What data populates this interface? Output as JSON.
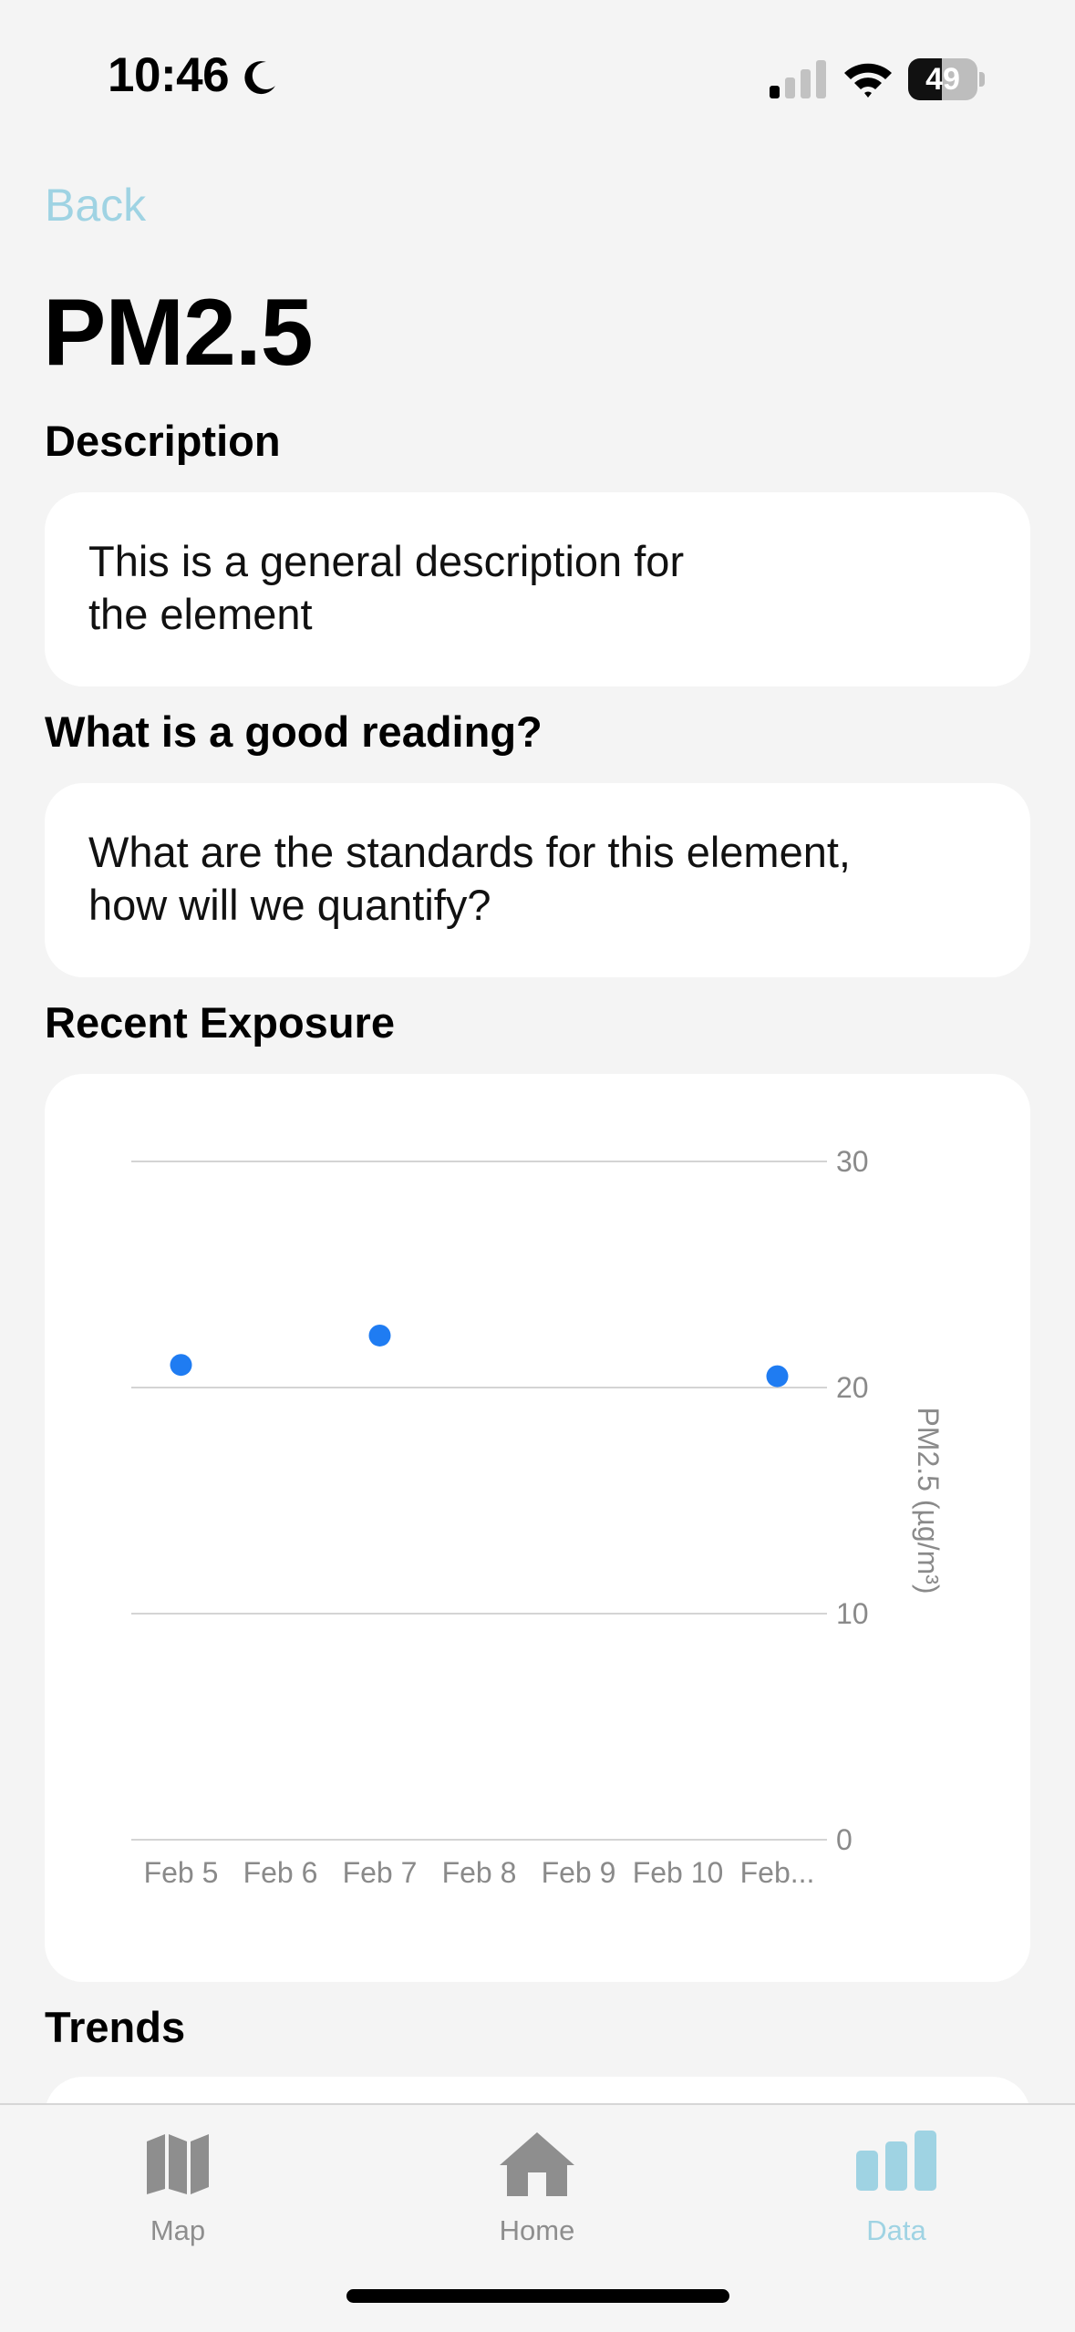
{
  "status": {
    "time": "10:46",
    "battery": "49",
    "battery_level": 0.49
  },
  "nav": {
    "back_label": "Back"
  },
  "page": {
    "title": "PM2.5"
  },
  "description": {
    "heading": "Description",
    "text": "This is a general description for\nthe element"
  },
  "good_reading": {
    "heading": "What is a good reading?",
    "text": "What are the standards for this element,\nhow will we quantify?"
  },
  "exposure": {
    "heading": "Recent Exposure"
  },
  "trends": {
    "heading": "Trends"
  },
  "chart_data": {
    "type": "scatter",
    "categories": [
      "Feb 5",
      "Feb 6",
      "Feb 7",
      "Feb 8",
      "Feb 9",
      "Feb 10",
      "Feb..."
    ],
    "points": [
      {
        "x": "Feb 5",
        "y": 21.0
      },
      {
        "x": "Feb 7",
        "y": 22.3
      },
      {
        "x": "Feb...",
        "y": 20.5
      }
    ],
    "yticks": [
      0,
      10,
      20,
      30
    ],
    "ylim": [
      0,
      30
    ],
    "ylabel": "PM2.5 (µg/m³)",
    "xlabel": "",
    "title": "",
    "grid": true,
    "point_color": "#1f7cf2"
  },
  "tabs": [
    {
      "label": "Map",
      "icon": "map-icon",
      "active": false
    },
    {
      "label": "Home",
      "icon": "home-icon",
      "active": false
    },
    {
      "label": "Data",
      "icon": "bar-chart-icon",
      "active": true
    }
  ],
  "colors": {
    "accent": "#9fd3e3",
    "inactive": "#8e8e8e",
    "point": "#1f7cf2"
  }
}
